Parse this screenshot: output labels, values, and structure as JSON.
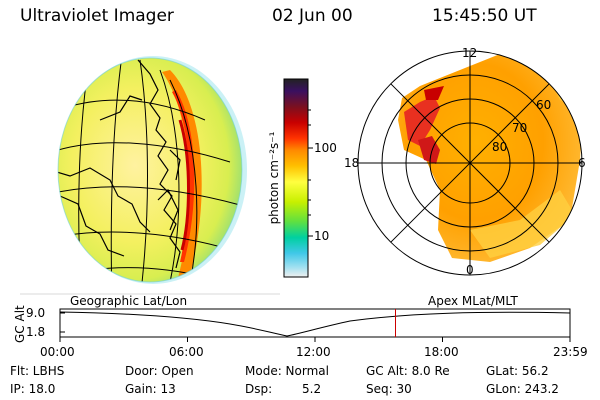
{
  "header": {
    "instrument": "Ultraviolet Imager",
    "date": "02 Jun 00",
    "time": "15:45:50 UT"
  },
  "colorbar": {
    "unit_label": "photon cm⁻²s⁻¹",
    "ticks": [
      "100",
      "10"
    ],
    "colors": [
      "#222222",
      "#3a1060",
      "#7a1020",
      "#c80000",
      "#ff3300",
      "#ff8a00",
      "#ffc000",
      "#ffff40",
      "#c8f000",
      "#60e040",
      "#00d0a0",
      "#40c8e8",
      "#a0e0f0",
      "#f0f0f0"
    ]
  },
  "left_panel": {
    "caption": "Geographic Lat/Lon"
  },
  "right_panel": {
    "caption": "Apex MLat/MLT",
    "mlt_labels": {
      "top": "12",
      "left": "18",
      "right": "6",
      "bottom": "0"
    },
    "lat_labels": [
      "60",
      "70",
      "80"
    ]
  },
  "altitude_plot": {
    "ylabel": "GC Alt",
    "yticks": [
      "9.0",
      "1.8"
    ],
    "xticks": [
      "00:00",
      "06:00",
      "12:00",
      "18:00",
      "23:59"
    ],
    "marker_time": "15:45:50",
    "marker_color": "#cc0000"
  },
  "info": {
    "flt": "Flt: LBHS",
    "door": "Door: Open",
    "mode": "Mode: Normal",
    "gc_alt": "GC Alt: 8.0 Re",
    "glat": "GLat:  56.2",
    "ip": "IP: 18.0",
    "gain": "Gain: 13",
    "dsp_label": "Dsp:",
    "dsp_value": "5.2",
    "seq": "Seq: 30",
    "glon": "GLon: 243.2"
  }
}
